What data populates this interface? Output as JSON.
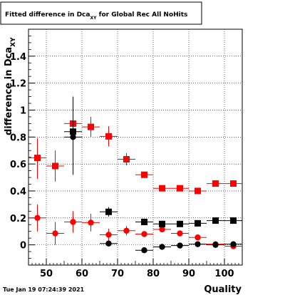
{
  "chart_data": {
    "type": "scatter",
    "title": "Fitted difference in Dca",
    "title_subscript": "XY",
    "title_suffix": " for Global Rec All NoHits",
    "xlabel": "Quality",
    "ylabel": "difference in Dca",
    "ylabel_subscript": "XY",
    "xlim": [
      45,
      105
    ],
    "ylim": [
      -0.15,
      1.6
    ],
    "x_ticks": [
      50,
      60,
      70,
      80,
      90,
      100
    ],
    "x_tick_labels": [
      "50",
      "60",
      "70",
      "80",
      "90",
      "100"
    ],
    "y_ticks": [
      0,
      0.2,
      0.4,
      0.6,
      0.8,
      1,
      1.2,
      1.4
    ],
    "y_tick_labels": [
      "0",
      "0.2",
      "0.4",
      "0.6",
      "0.8",
      "1",
      "1.2",
      "1.4"
    ],
    "grid": true,
    "series": [
      {
        "color": "#ff0000",
        "marker": "square",
        "points": [
          {
            "x": 47.5,
            "y": 0.645,
            "ylo": 0.49,
            "yhi": 0.79
          },
          {
            "x": 52.5,
            "y": 0.585,
            "ylo": 0.47,
            "yhi": 0.7
          },
          {
            "x": 57.5,
            "y": 0.9,
            "ylo": 0.83,
            "yhi": 0.97
          },
          {
            "x": 62.5,
            "y": 0.875,
            "ylo": 0.8,
            "yhi": 0.95
          },
          {
            "x": 67.5,
            "y": 0.805,
            "ylo": 0.73,
            "yhi": 0.88
          },
          {
            "x": 72.5,
            "y": 0.635,
            "ylo": 0.59,
            "yhi": 0.68
          },
          {
            "x": 77.5,
            "y": 0.52,
            "ylo": 0.5,
            "yhi": 0.54
          },
          {
            "x": 82.5,
            "y": 0.42,
            "ylo": 0.41,
            "yhi": 0.43
          },
          {
            "x": 87.5,
            "y": 0.42,
            "ylo": 0.41,
            "yhi": 0.43
          },
          {
            "x": 92.5,
            "y": 0.4,
            "ylo": 0.39,
            "yhi": 0.41
          },
          {
            "x": 97.5,
            "y": 0.455,
            "ylo": 0.445,
            "yhi": 0.465
          },
          {
            "x": 102.5,
            "y": 0.455,
            "ylo": 0.445,
            "yhi": 0.465
          }
        ]
      },
      {
        "color": "#ff0000",
        "marker": "circle",
        "points": [
          {
            "x": 47.5,
            "y": 0.2,
            "ylo": 0.1,
            "yhi": 0.3
          },
          {
            "x": 52.5,
            "y": 0.085,
            "ylo": 0.0,
            "yhi": 0.17
          },
          {
            "x": 57.5,
            "y": 0.17,
            "ylo": 0.09,
            "yhi": 0.25
          },
          {
            "x": 62.5,
            "y": 0.165,
            "ylo": 0.1,
            "yhi": 0.23
          },
          {
            "x": 67.5,
            "y": 0.075,
            "ylo": 0.03,
            "yhi": 0.12
          },
          {
            "x": 72.5,
            "y": 0.105,
            "ylo": 0.07,
            "yhi": 0.14
          },
          {
            "x": 77.5,
            "y": 0.08,
            "ylo": 0.06,
            "yhi": 0.1
          },
          {
            "x": 82.5,
            "y": 0.115,
            "ylo": 0.1,
            "yhi": 0.13
          },
          {
            "x": 87.5,
            "y": 0.085,
            "ylo": 0.075,
            "yhi": 0.095
          },
          {
            "x": 92.5,
            "y": 0.055,
            "ylo": 0.045,
            "yhi": 0.065
          },
          {
            "x": 97.5,
            "y": 0.005,
            "ylo": 0.0,
            "yhi": 0.012
          },
          {
            "x": 102.5,
            "y": -0.01,
            "ylo": -0.015,
            "yhi": -0.005
          }
        ]
      },
      {
        "color": "#000000",
        "marker": "square",
        "points": [
          {
            "x": 57.5,
            "y": 0.84,
            "ylo": 0.74,
            "yhi": 0.94
          },
          {
            "x": 67.5,
            "y": 0.245,
            "ylo": 0.21,
            "yhi": 0.28
          },
          {
            "x": 77.5,
            "y": 0.17,
            "ylo": 0.155,
            "yhi": 0.185
          },
          {
            "x": 82.5,
            "y": 0.155,
            "ylo": 0.145,
            "yhi": 0.165
          },
          {
            "x": 87.5,
            "y": 0.155,
            "ylo": 0.145,
            "yhi": 0.165
          },
          {
            "x": 92.5,
            "y": 0.16,
            "ylo": 0.15,
            "yhi": 0.17
          },
          {
            "x": 97.5,
            "y": 0.18,
            "ylo": 0.172,
            "yhi": 0.188
          },
          {
            "x": 102.5,
            "y": 0.18,
            "ylo": 0.172,
            "yhi": 0.188
          }
        ]
      },
      {
        "color": "#000000",
        "marker": "circle",
        "points": [
          {
            "x": 57.5,
            "y": 0.8,
            "ylo": 0.52,
            "yhi": 1.1
          },
          {
            "x": 67.5,
            "y": 0.01,
            "ylo": -0.01,
            "yhi": 0.03
          },
          {
            "x": 77.5,
            "y": -0.04,
            "ylo": -0.05,
            "yhi": -0.03
          },
          {
            "x": 82.5,
            "y": -0.015,
            "ylo": -0.022,
            "yhi": -0.008
          },
          {
            "x": 87.5,
            "y": -0.005,
            "ylo": -0.01,
            "yhi": 0.0
          },
          {
            "x": 92.5,
            "y": 0.005,
            "ylo": 0.0,
            "yhi": 0.01
          },
          {
            "x": 97.5,
            "y": 0.0,
            "ylo": -0.005,
            "yhi": 0.005
          },
          {
            "x": 102.5,
            "y": 0.005,
            "ylo": 0.0,
            "yhi": 0.01
          }
        ]
      }
    ]
  },
  "footer": {
    "timestamp": "Tue Jan 19 07:24:39 2021"
  }
}
